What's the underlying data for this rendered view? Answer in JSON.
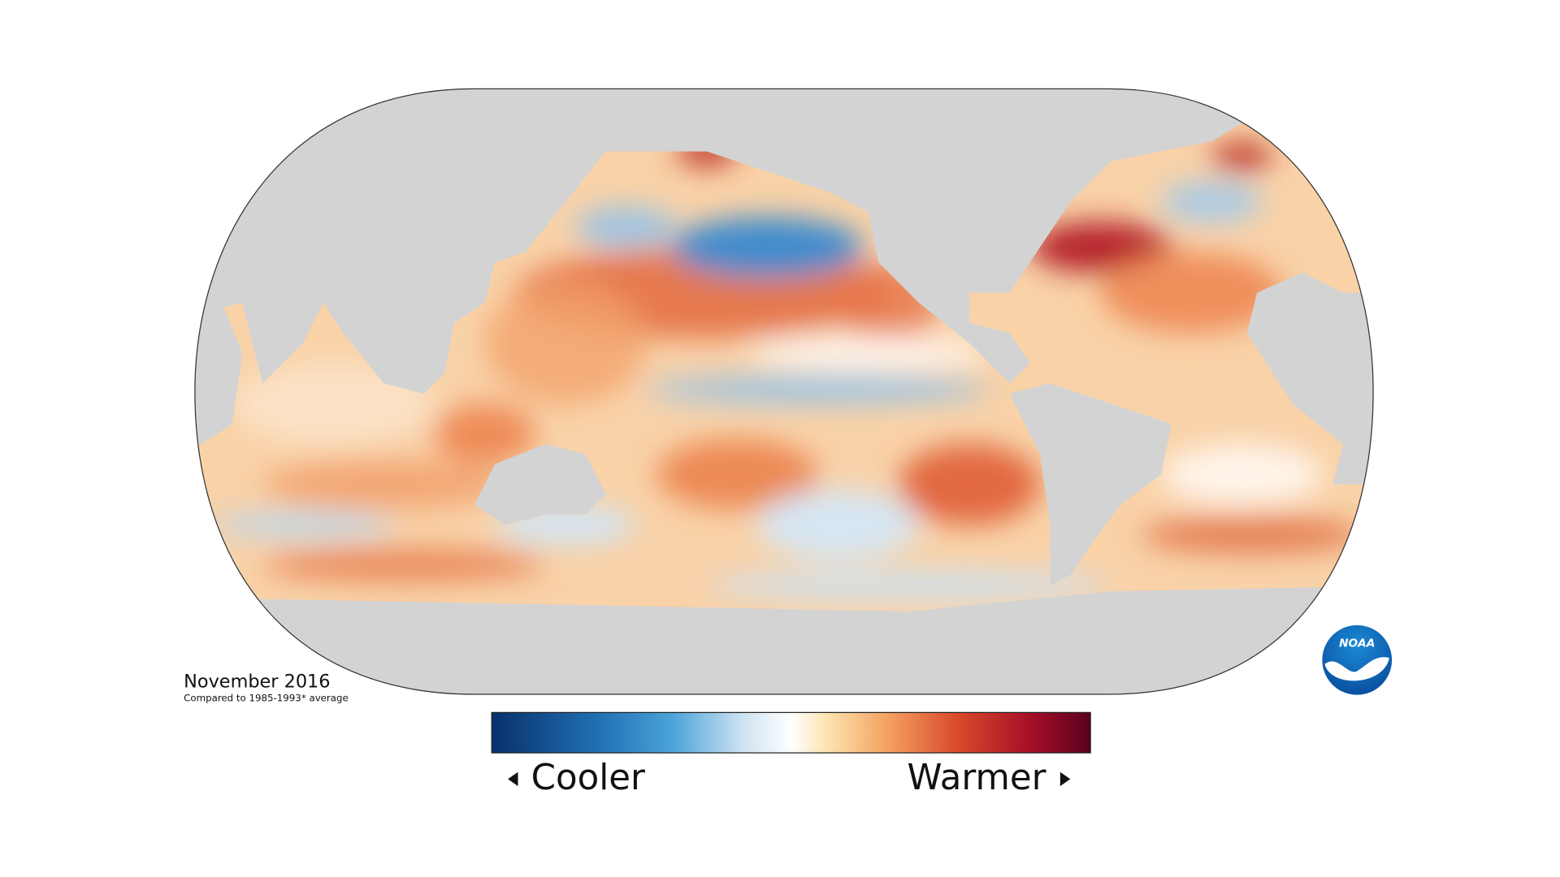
{
  "title": "November 2016",
  "subtitle": "Compared to 1985-1993* average",
  "legend": {
    "low_label": "Cooler",
    "high_label": "Warmer"
  },
  "logo": {
    "text": "NOAA"
  }
}
